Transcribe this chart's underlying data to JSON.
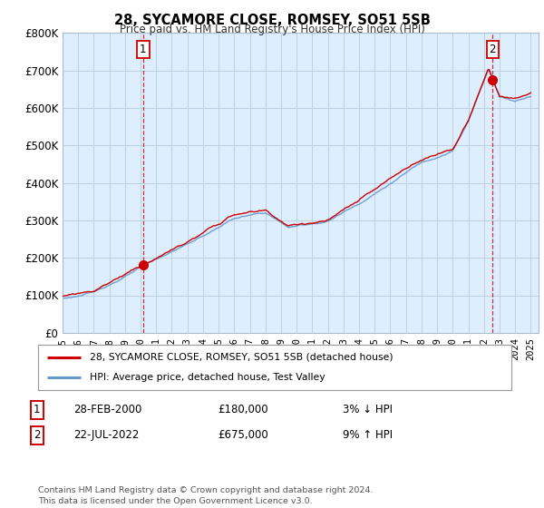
{
  "title": "28, SYCAMORE CLOSE, ROMSEY, SO51 5SB",
  "subtitle": "Price paid vs. HM Land Registry's House Price Index (HPI)",
  "ylabel_ticks": [
    "£0",
    "£100K",
    "£200K",
    "£300K",
    "£400K",
    "£500K",
    "£600K",
    "£700K",
    "£800K"
  ],
  "ytick_values": [
    0,
    100000,
    200000,
    300000,
    400000,
    500000,
    600000,
    700000,
    800000
  ],
  "ylim": [
    0,
    800000
  ],
  "xlim_start": 1995.0,
  "xlim_end": 2025.5,
  "chart_bg_color": "#ddeeff",
  "hpi_color": "#6699cc",
  "price_color": "#cc0000",
  "sale1_year": 2000.16,
  "sale1_price": 180000,
  "sale2_year": 2022.55,
  "sale2_price": 675000,
  "legend_label1": "28, SYCAMORE CLOSE, ROMSEY, SO51 5SB (detached house)",
  "legend_label2": "HPI: Average price, detached house, Test Valley",
  "table_row1_num": "1",
  "table_row1_date": "28-FEB-2000",
  "table_row1_price": "£180,000",
  "table_row1_hpi": "3% ↓ HPI",
  "table_row2_num": "2",
  "table_row2_date": "22-JUL-2022",
  "table_row2_price": "£675,000",
  "table_row2_hpi": "9% ↑ HPI",
  "footer": "Contains HM Land Registry data © Crown copyright and database right 2024.\nThis data is licensed under the Open Government Licence v3.0.",
  "background_color": "#ffffff",
  "grid_color": "#c0d0e0"
}
